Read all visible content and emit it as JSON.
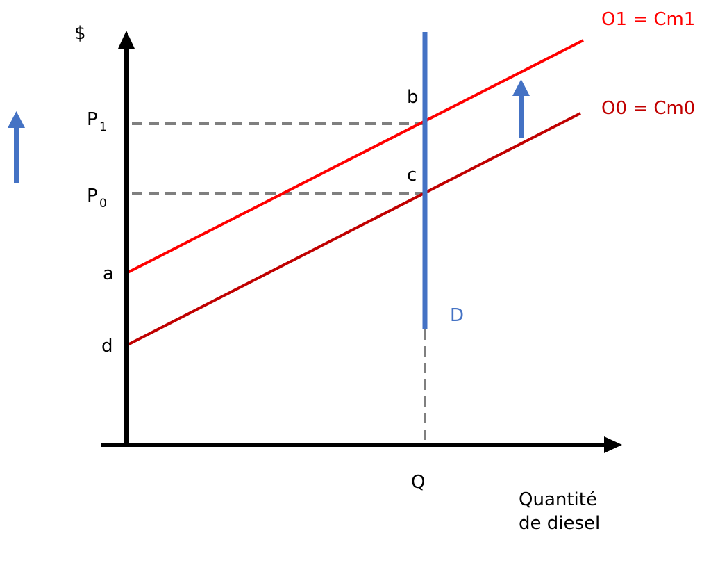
{
  "axes": {
    "y_label": "$",
    "x_label_line1": "Quantité",
    "x_label_line2": "de diesel"
  },
  "prices": {
    "p1_main": "P",
    "p1_sub": "1",
    "p0_main": "P",
    "p0_sub": "0"
  },
  "quantity": {
    "q_label": "Q"
  },
  "points": {
    "a": "a",
    "b": "b",
    "c": "c",
    "d": "d"
  },
  "curves": {
    "supply_new": {
      "label": "O1 = Cm1",
      "color": "#ff0000"
    },
    "supply_old": {
      "label": "O0 = Cm0",
      "color": "#c00000"
    },
    "demand": {
      "label": "D",
      "color": "#4472c4"
    }
  },
  "colors": {
    "axis": "#000000",
    "guide_dashed": "#7f7f7f",
    "arrow": "#4472c4"
  },
  "icons": {
    "left_arrow": "up-arrow-icon",
    "shift_arrow": "up-arrow-icon"
  }
}
